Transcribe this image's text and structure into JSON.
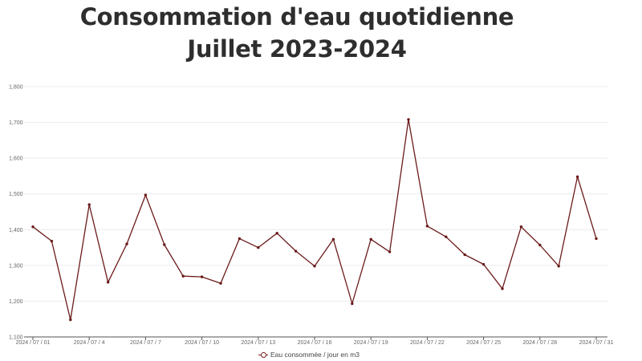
{
  "title_line1": "Consommation d'eau quotidienne",
  "title_line2": "Juillet 2023-2024",
  "colors": {
    "line": "#6b1a1a",
    "grid": "#ececec",
    "text": "#2e2e2e"
  },
  "chart_data": {
    "type": "line",
    "title": "Consommation d'eau quotidienne Juillet 2023-2024",
    "xlabel": "",
    "ylabel": "",
    "ylim": [
      1100,
      1800
    ],
    "yticks": [
      "1,100",
      "1,200",
      "1,300",
      "1,400",
      "1,500",
      "1,600",
      "1,700",
      "1,800"
    ],
    "yticks_values": [
      1100,
      1200,
      1300,
      1400,
      1500,
      1600,
      1700,
      1800
    ],
    "x_tick_labels": [
      "2024 / 07 / 01",
      "2024 / 07 / 4",
      "2024 / 07 / 7",
      "2024 / 07 / 10",
      "2024 / 07 / 13",
      "2024 / 07 / 16",
      "2024 / 07 / 19",
      "2024 / 07 / 22",
      "2024 / 07 / 25",
      "2024 / 07 / 28",
      "2024 / 07 / 31"
    ],
    "x_tick_days": [
      1,
      4,
      7,
      10,
      13,
      16,
      19,
      22,
      25,
      28,
      31
    ],
    "grid": true,
    "legend_position": "bottom",
    "series": [
      {
        "name": "Eau consommée / jour en m3",
        "x": [
          1,
          2,
          3,
          4,
          5,
          6,
          7,
          8,
          9,
          10,
          11,
          12,
          13,
          14,
          15,
          16,
          17,
          18,
          19,
          20,
          21,
          22,
          23,
          24,
          25,
          26,
          27,
          28,
          29,
          30,
          31
        ],
        "values": [
          1408,
          1368,
          1148,
          1470,
          1253,
          1360,
          1497,
          1358,
          1270,
          1268,
          1250,
          1375,
          1350,
          1390,
          1340,
          1298,
          1373,
          1193,
          1373,
          1338,
          1708,
          1410,
          1380,
          1330,
          1303,
          1235,
          1408,
          1357,
          1298,
          1548,
          1375
        ]
      }
    ]
  }
}
